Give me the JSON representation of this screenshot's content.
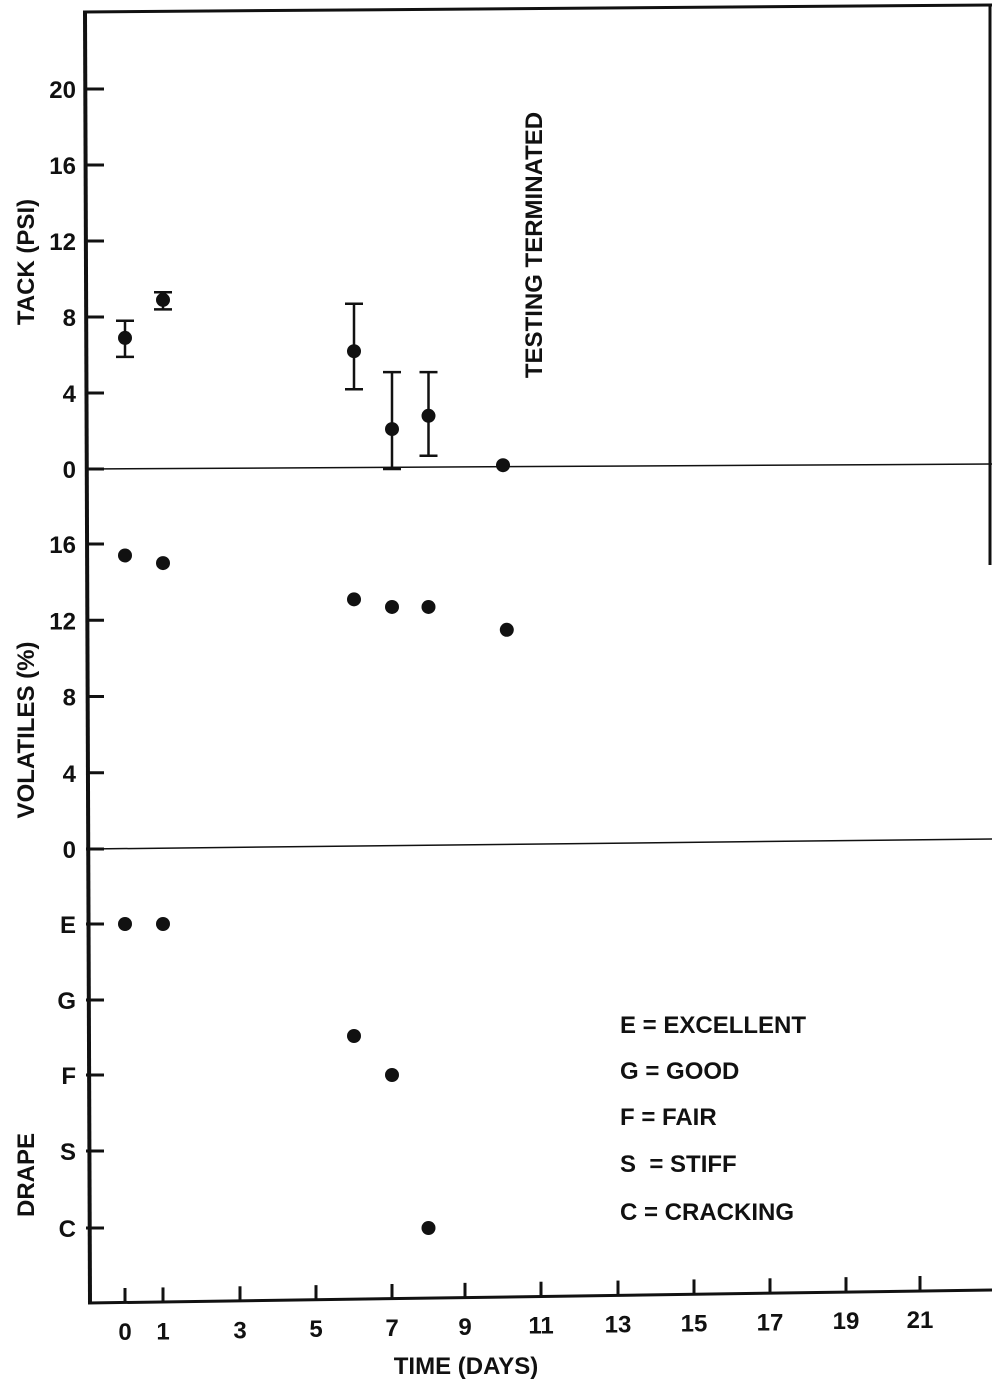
{
  "chart_data": {
    "type": "scatter",
    "xlabel": "TIME (DAYS)",
    "x_ticks": [
      0,
      1,
      3,
      5,
      7,
      9,
      11,
      13,
      15,
      17,
      19,
      21
    ],
    "panels": [
      {
        "id": "tack",
        "ylabel": "TACK (PSI)",
        "ylim": [
          0,
          24
        ],
        "y_ticks": [
          0,
          4,
          8,
          12,
          16,
          20
        ],
        "points": [
          {
            "x": 0,
            "y": 6.9,
            "err_low": 5.9,
            "err_high": 7.8
          },
          {
            "x": 1,
            "y": 8.9,
            "err_low": 8.4,
            "err_high": 9.3
          },
          {
            "x": 6,
            "y": 6.2,
            "err_low": 4.2,
            "err_high": 8.7
          },
          {
            "x": 7,
            "y": 2.1,
            "err_low": 0,
            "err_high": 5.1
          },
          {
            "x": 8,
            "y": 2.8,
            "err_low": 0.7,
            "err_high": 5.1
          },
          {
            "x": 10,
            "y": 0.2
          }
        ],
        "annotation": {
          "text": "TESTING TERMINATED",
          "x": 10.5
        }
      },
      {
        "id": "volatiles",
        "ylabel": "VOLATILES (%)",
        "ylim": [
          0,
          20
        ],
        "y_ticks": [
          0,
          4,
          8,
          12,
          16
        ],
        "points": [
          {
            "x": 0,
            "y": 15.4
          },
          {
            "x": 1,
            "y": 15.0
          },
          {
            "x": 6,
            "y": 13.1
          },
          {
            "x": 7,
            "y": 12.7
          },
          {
            "x": 8,
            "y": 12.7
          },
          {
            "x": 10.1,
            "y": 11.5
          }
        ]
      },
      {
        "id": "drape",
        "ylabel": "DRAPE",
        "y_categories": [
          "C",
          "S",
          "F",
          "G",
          "E"
        ],
        "points": [
          {
            "x": 0,
            "y": "E"
          },
          {
            "x": 1,
            "y": "E"
          },
          {
            "x": 6,
            "y": "G-F"
          },
          {
            "x": 7,
            "y": "F"
          },
          {
            "x": 8,
            "y": "C"
          }
        ],
        "legend": [
          "E = EXCELLENT",
          "G = GOOD",
          "F = FAIR",
          "S  = STIFF",
          "C = CRACKING"
        ]
      }
    ]
  }
}
